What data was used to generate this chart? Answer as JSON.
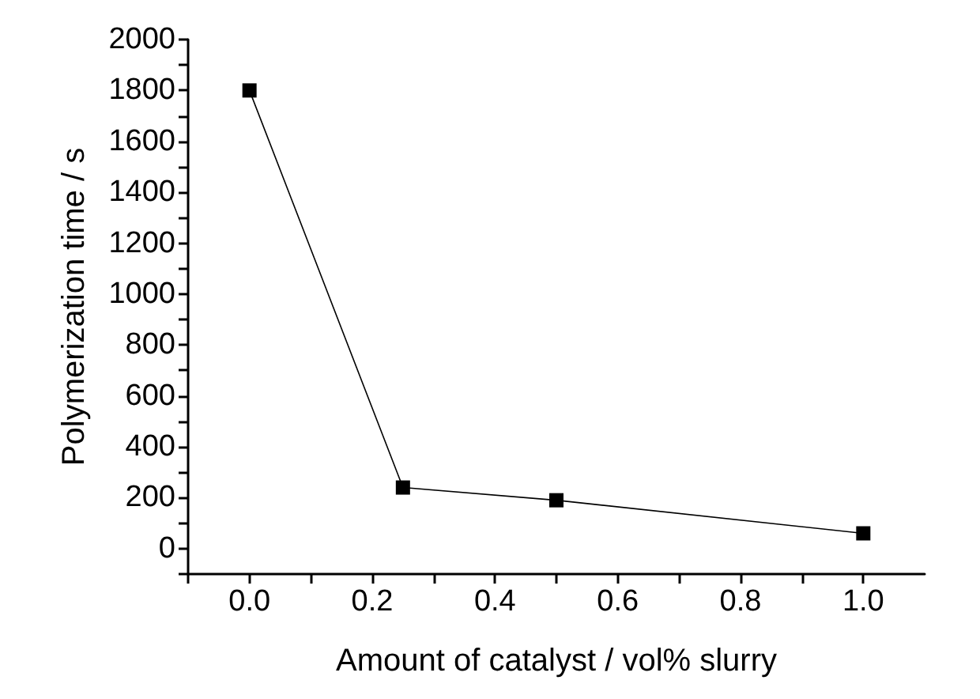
{
  "chart_data": {
    "type": "line",
    "xlabel": "Amount of catalyst / vol% slurry",
    "ylabel": "Polymerization time / s",
    "x": [
      0,
      0.25,
      0.5,
      1.0
    ],
    "series": [
      {
        "color": "#000000",
        "values": [
          1800,
          240,
          190,
          60
        ]
      }
    ],
    "xlim": [
      -0.1,
      1.1
    ],
    "xticks": [
      {
        "value": -0.1,
        "label": null
      },
      {
        "value": 0,
        "label": "0.0"
      },
      {
        "value": 0.1,
        "label": null
      },
      {
        "value": 0.2,
        "label": "0.2"
      },
      {
        "value": 0.3,
        "label": null
      },
      {
        "value": 0.4,
        "label": "0.4"
      },
      {
        "value": 0.5,
        "label": null
      },
      {
        "value": 0.6,
        "label": "0.6"
      },
      {
        "value": 0.7,
        "label": null
      },
      {
        "value": 0.8,
        "label": "0.8"
      },
      {
        "value": 0.9,
        "label": null
      },
      {
        "value": 1.0,
        "label": "1.0"
      }
    ],
    "ylim": [
      -100,
      2000
    ],
    "yticks": [
      {
        "value": -100,
        "label": null
      },
      0,
      {
        "value": 100,
        "label": null
      },
      200,
      {
        "value": 300,
        "label": null
      },
      400,
      {
        "value": 500,
        "label": null
      },
      600,
      {
        "value": 700,
        "label": null
      },
      800,
      {
        "value": 900,
        "label": null
      },
      1000,
      {
        "value": 1100,
        "label": null
      },
      1200,
      {
        "value": 1300,
        "label": null
      },
      1400,
      {
        "value": 1500,
        "label": null
      },
      1600,
      {
        "value": 1700,
        "label": null
      },
      1800,
      {
        "value": 1900,
        "label": null
      },
      2000
    ],
    "marker": "square",
    "line_style": "solid",
    "grid": false
  }
}
